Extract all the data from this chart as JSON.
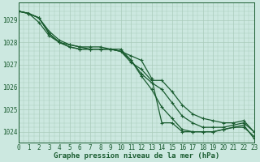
{
  "title": "Graphe pression niveau de la mer (hPa)",
  "background_color": "#cce8e0",
  "grid_color": "#aaccbb",
  "line_color": "#1a5c30",
  "xlim": [
    0,
    23
  ],
  "ylim": [
    1023.5,
    1029.8
  ],
  "yticks": [
    1024,
    1025,
    1026,
    1027,
    1028,
    1029
  ],
  "xticks": [
    0,
    1,
    2,
    3,
    4,
    5,
    6,
    7,
    8,
    9,
    10,
    11,
    12,
    13,
    14,
    15,
    16,
    17,
    18,
    19,
    20,
    21,
    22,
    23
  ],
  "series": [
    [
      1029.4,
      1029.3,
      1029.1,
      1028.5,
      1028.1,
      1027.9,
      1027.8,
      1027.8,
      1027.8,
      1027.7,
      1027.6,
      1027.1,
      1026.8,
      1026.3,
      1026.3,
      1025.8,
      1025.2,
      1024.8,
      1024.6,
      1024.5,
      1024.4,
      1024.4,
      1024.5,
      1024.0
    ],
    [
      1029.4,
      1029.3,
      1029.1,
      1028.4,
      1028.0,
      1027.9,
      1027.8,
      1027.7,
      1027.7,
      1027.7,
      1027.7,
      1027.2,
      1026.6,
      1026.2,
      1025.9,
      1025.3,
      1024.7,
      1024.4,
      1024.2,
      1024.2,
      1024.2,
      1024.3,
      1024.4,
      1024.0
    ],
    [
      1029.4,
      1029.3,
      1029.1,
      1028.4,
      1028.0,
      1027.8,
      1027.7,
      1027.7,
      1027.7,
      1027.7,
      1027.6,
      1027.2,
      1026.5,
      1025.9,
      1025.1,
      1024.6,
      1024.1,
      1024.0,
      1024.0,
      1024.0,
      1024.1,
      1024.2,
      1024.2,
      1023.8
    ],
    [
      1029.4,
      1029.3,
      1028.9,
      1028.3,
      1028.0,
      1027.8,
      1027.7,
      1027.7,
      1027.7,
      1027.7,
      1027.6,
      1027.4,
      1027.2,
      1026.4,
      1024.4,
      1024.4,
      1024.0,
      1024.0,
      1024.0,
      1024.0,
      1024.1,
      1024.2,
      1024.3,
      1023.7
    ]
  ],
  "marker": "+",
  "markersize": 3.5,
  "linewidth": 0.9,
  "xlabel_fontsize": 6.5,
  "tick_fontsize": 5.5,
  "fig_width": 3.2,
  "fig_height": 2.0,
  "dpi": 100
}
